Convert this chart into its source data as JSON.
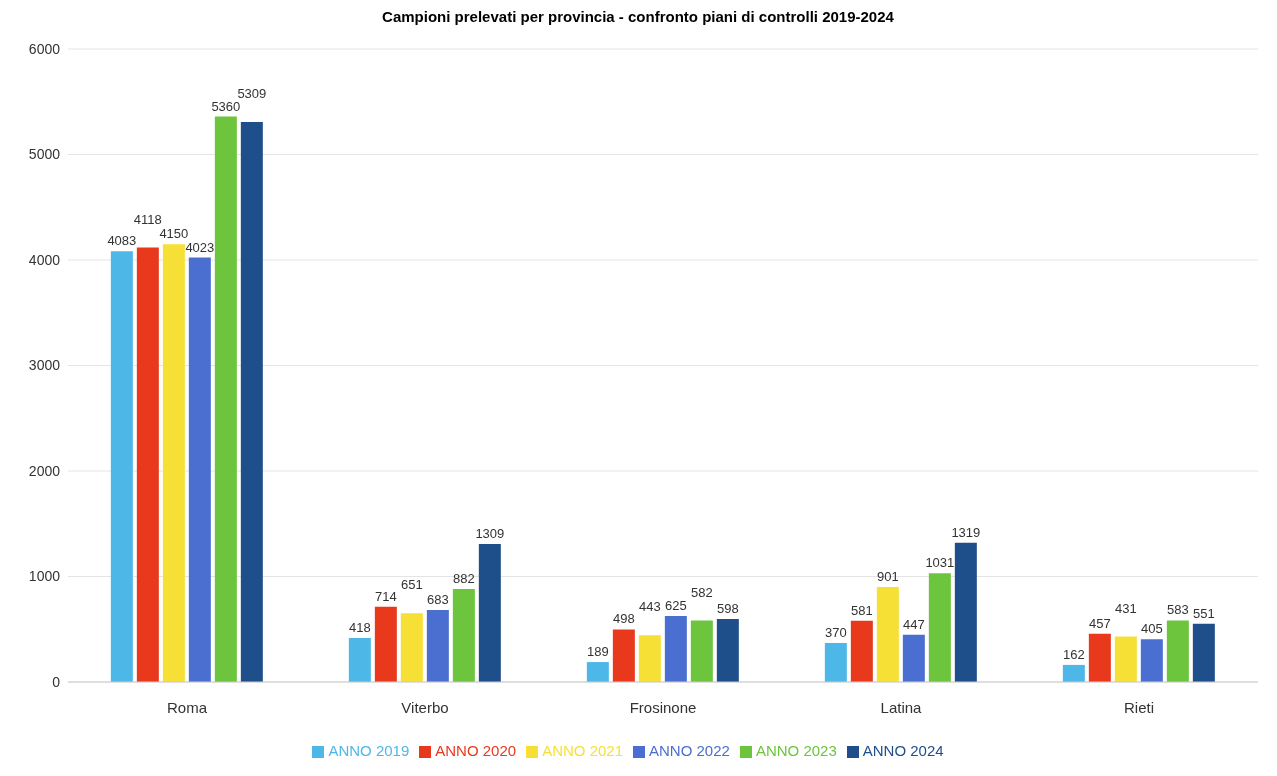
{
  "chart_data": {
    "type": "bar",
    "title": "Campioni prelevati per provincia - confronto piani di controlli 2019-2024",
    "categories": [
      "Roma",
      "Viterbo",
      "Frosinone",
      "Latina",
      "Rieti"
    ],
    "series": [
      {
        "name": "ANNO 2019",
        "color": "#4db8e8",
        "values": [
          4083,
          418,
          189,
          370,
          162
        ]
      },
      {
        "name": "ANNO 2020",
        "color": "#e8391d",
        "values": [
          4118,
          714,
          498,
          581,
          457
        ]
      },
      {
        "name": "ANNO 2021",
        "color": "#f7e035",
        "values": [
          4150,
          651,
          443,
          901,
          431
        ]
      },
      {
        "name": "ANNO 2022",
        "color": "#4a6fd1",
        "values": [
          4023,
          683,
          625,
          447,
          405
        ]
      },
      {
        "name": "ANNO 2023",
        "color": "#6cc53c",
        "values": [
          5360,
          882,
          582,
          1031,
          583
        ]
      },
      {
        "name": "ANNO 2024",
        "color": "#1f4f8a",
        "values": [
          5309,
          1309,
          598,
          1319,
          551
        ]
      }
    ],
    "ylim": [
      0,
      6000
    ],
    "yticks": [
      0,
      1000,
      2000,
      3000,
      4000,
      5000,
      6000
    ],
    "grid": "y",
    "legend": "bottom",
    "data_labels": true
  }
}
